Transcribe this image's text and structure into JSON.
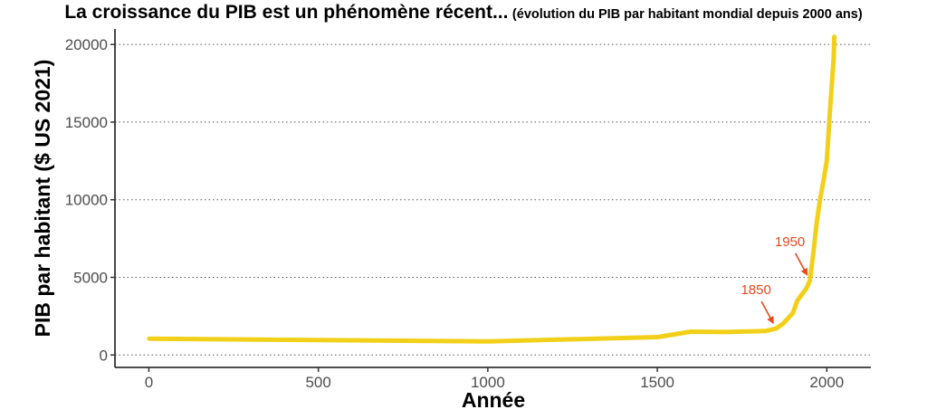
{
  "title": {
    "main": "La croissance du PIB est un phénomène récent...",
    "sub": "(évolution du PIB par habitant mondial depuis 2000 ans)"
  },
  "chart_data": {
    "type": "line",
    "xlabel": "Année",
    "ylabel": "PIB par habitant ($ US 2021)",
    "xlim": [
      -100,
      2130
    ],
    "ylim": [
      -800,
      21000
    ],
    "x_ticks": [
      0,
      500,
      1000,
      1500,
      2000
    ],
    "y_ticks": [
      0,
      5000,
      10000,
      15000,
      20000
    ],
    "grid": "horizontal-dotted",
    "line_color": "#f2d019",
    "annotation_color": "#e8481c",
    "series": [
      {
        "x": [
          1,
          1000,
          1500,
          1600,
          1700,
          1820,
          1850,
          1870,
          1900,
          1913,
          1940,
          1950,
          1960,
          1970,
          1980,
          1990,
          2000,
          2010,
          2020,
          2022
        ],
        "y": [
          1050,
          870,
          1150,
          1500,
          1480,
          1550,
          1700,
          2000,
          2700,
          3500,
          4300,
          4800,
          6500,
          8500,
          10000,
          11200,
          12500,
          16000,
          19000,
          20500
        ]
      }
    ],
    "annotations": [
      {
        "label": "1850",
        "x": 1850,
        "y": 1700
      },
      {
        "label": "1950",
        "x": 1950,
        "y": 4800
      }
    ]
  }
}
